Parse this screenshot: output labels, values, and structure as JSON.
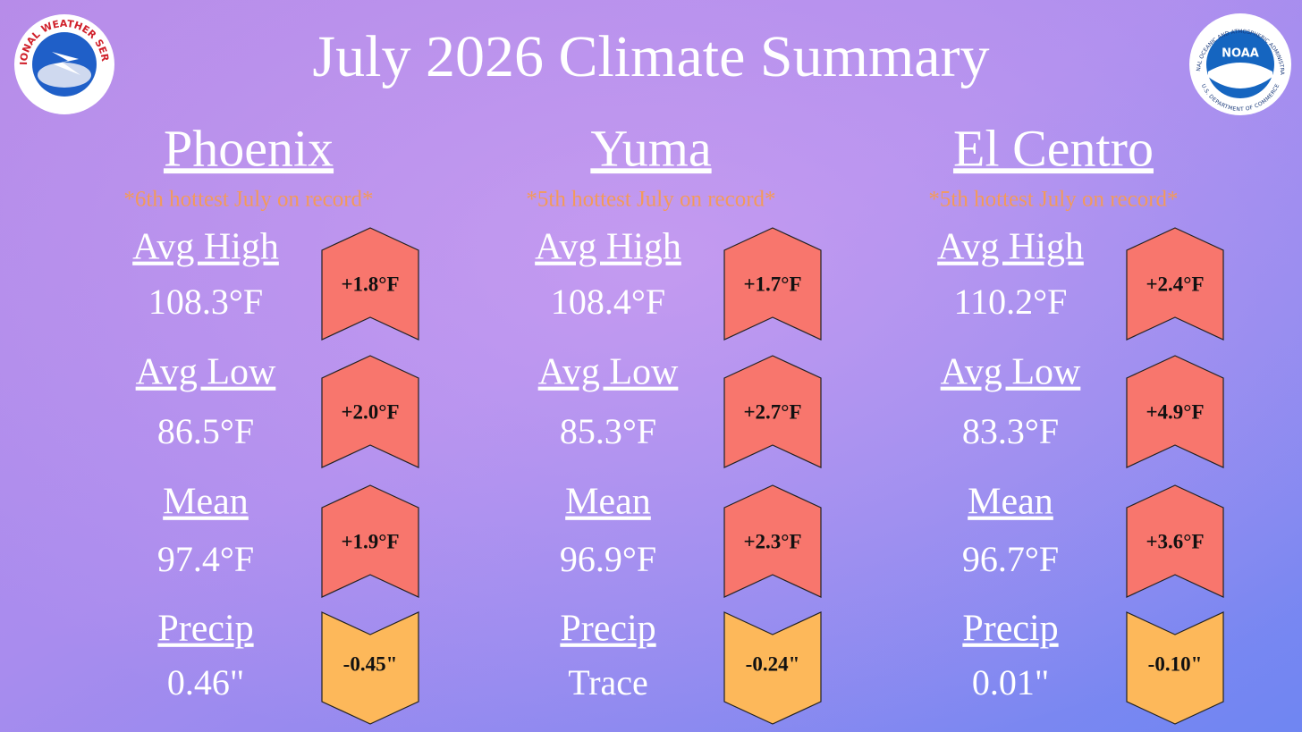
{
  "header": {
    "title": "July 2026 Climate Summary",
    "left_logo": {
      "ring": "NATIONAL WEATHER SERVICE"
    },
    "right_logo": {
      "center": "NOAA",
      "ring_top": "NATIONAL OCEANIC AND ATMOSPHERIC ADMINISTRATION",
      "ring_bottom": "U.S. DEPARTMENT OF COMMERCE"
    }
  },
  "cities": [
    {
      "name": "Phoenix",
      "note": "*6th hottest July on record*",
      "stats": [
        {
          "label": "Avg High",
          "value": "108.3°F",
          "anomaly": "+1.8°F",
          "shape": "up",
          "color": "#f8766d"
        },
        {
          "label": "Avg Low",
          "value": "86.5°F",
          "anomaly": "+2.0°F",
          "shape": "up",
          "color": "#f8766d"
        },
        {
          "label": "Mean",
          "value": "97.4°F",
          "anomaly": "+1.9°F",
          "shape": "up",
          "color": "#f8766d"
        },
        {
          "label": "Precip",
          "value": "0.46\"",
          "anomaly": "-0.45\"",
          "shape": "down",
          "color": "#fdb85a"
        }
      ]
    },
    {
      "name": "Yuma",
      "note": "*5th hottest July on record*",
      "stats": [
        {
          "label": "Avg High",
          "value": "108.4°F",
          "anomaly": "+1.7°F",
          "shape": "up",
          "color": "#f8766d"
        },
        {
          "label": "Avg Low",
          "value": "85.3°F",
          "anomaly": "+2.7°F",
          "shape": "up",
          "color": "#f8766d"
        },
        {
          "label": "Mean",
          "value": "96.9°F",
          "anomaly": "+2.3°F",
          "shape": "up",
          "color": "#f8766d"
        },
        {
          "label": "Precip",
          "value": "Trace",
          "anomaly": "-0.24\"",
          "shape": "down",
          "color": "#fdb85a"
        }
      ]
    },
    {
      "name": "El Centro",
      "note": "*5th hottest July on record*",
      "stats": [
        {
          "label": "Avg High",
          "value": "110.2°F",
          "anomaly": "+2.4°F",
          "shape": "up",
          "color": "#f8766d"
        },
        {
          "label": "Avg Low",
          "value": "83.3°F",
          "anomaly": "+4.9°F",
          "shape": "up",
          "color": "#f8766d"
        },
        {
          "label": "Mean",
          "value": "96.7°F",
          "anomaly": "+3.6°F",
          "shape": "up",
          "color": "#f8766d"
        },
        {
          "label": "Precip",
          "value": "0.01\"",
          "anomaly": "-0.10\"",
          "shape": "down",
          "color": "#fdb85a"
        }
      ]
    }
  ]
}
